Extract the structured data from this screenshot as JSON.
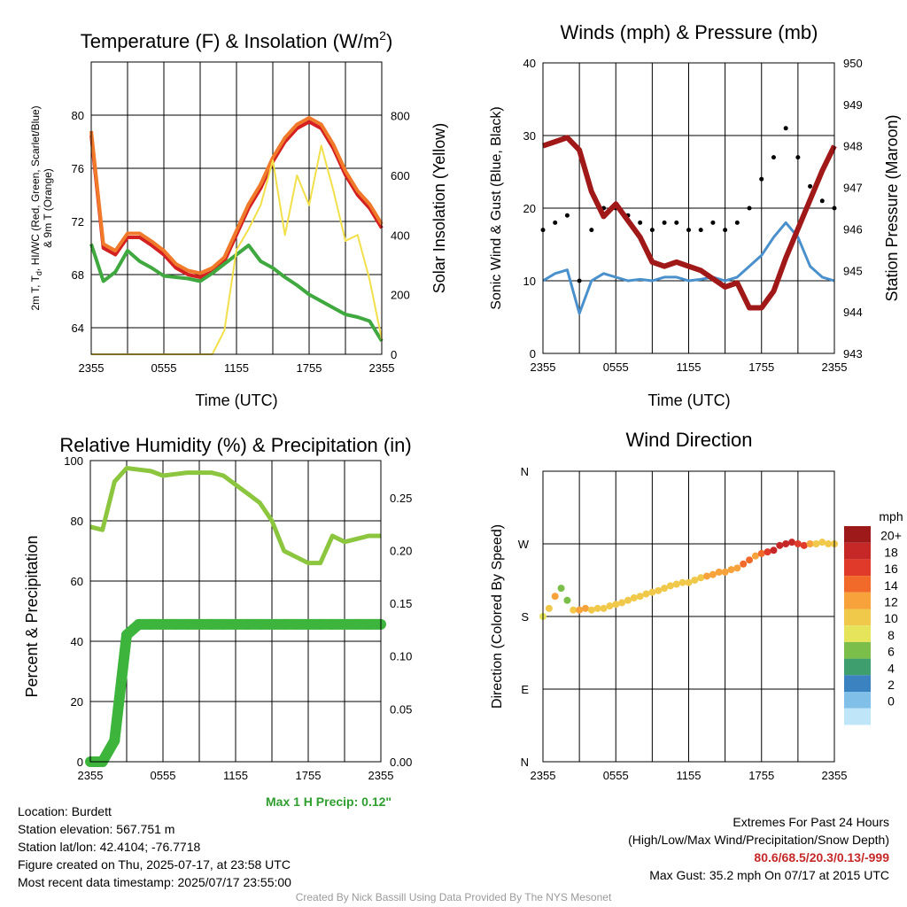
{
  "chart_data": [
    {
      "id": "temperature",
      "type": "line",
      "title": "Temperature (F) & Insolation (W/m²)",
      "xlabel": "Time (UTC)",
      "ylabel": "2m T, Td, HI/WC (Red, Green, Scarlet/Blue) & 9m T (Orange)",
      "ylabel_line1": "2m T, T",
      "ylabel_sub": "d",
      "ylabel_line1b": ", HI/WC (Red, Green, Scarlet/Blue)",
      "ylabel_line2": "& 9m T (Orange)",
      "y2label": "Solar Insolation (Yellow)",
      "xticks": [
        "2355",
        "0555",
        "1155",
        "1755",
        "2355"
      ],
      "ylim": [
        62,
        84
      ],
      "yticks": [
        64,
        68,
        72,
        76,
        80
      ],
      "y2lim": [
        0,
        980
      ],
      "y2ticks": [
        0,
        200,
        400,
        600,
        800
      ],
      "x_hours": [
        0,
        1,
        2,
        3,
        4,
        5,
        6,
        7,
        8,
        9,
        10,
        11,
        12,
        13,
        14,
        15,
        16,
        17,
        18,
        19,
        20,
        21,
        22,
        23,
        24
      ],
      "series": [
        {
          "name": "2m T",
          "color": "#d42020",
          "values": [
            78.5,
            70,
            69.5,
            70.8,
            70.8,
            70.2,
            69.5,
            68.5,
            68,
            67.8,
            68.2,
            69,
            71,
            73,
            74.5,
            76.5,
            78,
            79,
            79.5,
            79,
            77.5,
            75.5,
            74,
            73,
            71.5
          ]
        },
        {
          "name": "9m T",
          "color": "#f07a2a",
          "values": [
            78.8,
            70.3,
            69.8,
            71.1,
            71.1,
            70.5,
            69.8,
            68.8,
            68.3,
            68.1,
            68.5,
            69.3,
            71.3,
            73.3,
            74.8,
            76.8,
            78.3,
            79.3,
            79.8,
            79.3,
            77.8,
            75.8,
            74.3,
            73.3,
            71.8
          ]
        },
        {
          "name": "Td",
          "color": "#3fa83f",
          "values": [
            70.3,
            67.5,
            68.2,
            69.8,
            69,
            68.5,
            67.9,
            67.8,
            67.7,
            67.5,
            68.1,
            68.8,
            69.5,
            70.2,
            69,
            68.5,
            67.8,
            67.2,
            66.5,
            66,
            65.5,
            65,
            64.8,
            64.5,
            63
          ]
        },
        {
          "name": "Solar Insolation",
          "color": "#f2e04a",
          "axis": "y2",
          "values": [
            0,
            0,
            0,
            0,
            0,
            0,
            0,
            0,
            0,
            0,
            0,
            80,
            350,
            420,
            500,
            650,
            400,
            600,
            500,
            700,
            550,
            380,
            400,
            250,
            50
          ]
        }
      ]
    },
    {
      "id": "winds",
      "type": "scatter",
      "title": "Winds (mph) & Pressure (mb)",
      "xlabel": "Time (UTC)",
      "ylabel": "Sonic Wind & Gust (Blue, Black)",
      "y2label": "Station Pressure (Maroon)",
      "xticks": [
        "2355",
        "0555",
        "1155",
        "1755",
        "2355"
      ],
      "ylim": [
        0,
        40
      ],
      "yticks": [
        0,
        10,
        20,
        30,
        40
      ],
      "y2lim": [
        943,
        950
      ],
      "y2ticks": [
        943,
        944,
        945,
        946,
        947,
        948,
        949,
        950
      ],
      "x_hours": [
        0,
        1,
        2,
        3,
        4,
        5,
        6,
        7,
        8,
        9,
        10,
        11,
        12,
        13,
        14,
        15,
        16,
        17,
        18,
        19,
        20,
        21,
        22,
        23,
        24
      ],
      "series": [
        {
          "name": "Sonic Wind",
          "color": "#4a90cc",
          "values": [
            10,
            11,
            11.5,
            5.5,
            10,
            11,
            10.5,
            10,
            10.2,
            10,
            10.5,
            10.5,
            10,
            10.2,
            10.5,
            10,
            10.5,
            12,
            13.5,
            16,
            18,
            16,
            12,
            10.5,
            10
          ]
        },
        {
          "name": "Gust",
          "color": "#000000",
          "values": [
            17,
            18,
            19,
            10,
            17,
            20,
            20,
            19,
            18,
            17,
            18,
            18,
            17,
            17,
            18,
            17,
            18,
            20,
            24,
            27,
            31,
            27,
            23,
            21,
            20
          ]
        },
        {
          "name": "Station Pressure",
          "color": "#a01818",
          "axis": "y2",
          "values": [
            948,
            948.1,
            948.2,
            947.9,
            946.9,
            946.3,
            946.6,
            946.2,
            945.8,
            945.2,
            945.1,
            945.2,
            945.1,
            945,
            944.8,
            944.6,
            944.7,
            944.1,
            944.1,
            944.5,
            945.3,
            946,
            946.7,
            947.4,
            948
          ]
        }
      ]
    },
    {
      "id": "humidity",
      "type": "line",
      "title": "Relative Humidity (%) & Precipitation (in)",
      "ylabel": "Percent & Precipitation",
      "xticks": [
        "2355",
        "0555",
        "1155",
        "1755",
        "2355"
      ],
      "ylim": [
        0,
        100
      ],
      "yticks": [
        0,
        20,
        40,
        60,
        80,
        100
      ],
      "y2lim": [
        0,
        0.285
      ],
      "y2ticks": [
        "0.00",
        "0.05",
        "0.10",
        "0.15",
        "0.20",
        "0.25"
      ],
      "x_hours": [
        0,
        1,
        2,
        3,
        4,
        5,
        6,
        7,
        8,
        9,
        10,
        11,
        12,
        13,
        14,
        15,
        16,
        17,
        18,
        19,
        20,
        21,
        22,
        23,
        24
      ],
      "series": [
        {
          "name": "Relative Humidity",
          "color": "#8cc63f",
          "values": [
            78,
            77,
            93,
            97.5,
            97,
            96.5,
            95,
            95.5,
            96,
            96,
            96,
            95,
            92,
            89,
            86,
            80,
            70,
            68,
            66,
            66,
            75,
            73,
            74,
            75,
            75
          ]
        },
        {
          "name": "Precipitation",
          "color": "#3db53d",
          "values": [
            0,
            0,
            0.02,
            0.12,
            0.13,
            0.13,
            0.13,
            0.13,
            0.13,
            0.13,
            0.13,
            0.13,
            0.13,
            0.13,
            0.13,
            0.13,
            0.13,
            0.13,
            0.13,
            0.13,
            0.13,
            0.13,
            0.13,
            0.13,
            0.13
          ]
        }
      ]
    },
    {
      "id": "direction",
      "type": "scatter",
      "title": "Wind Direction",
      "ylabel": "Direction (Colored By Speed)",
      "xticks": [
        "2355",
        "0555",
        "1155",
        "1755",
        "2355"
      ],
      "yticks": [
        "N",
        "E",
        "S",
        "W",
        "N"
      ],
      "ylim": [
        0,
        360
      ],
      "x_hours": [
        0,
        0.5,
        1,
        1.5,
        2,
        2.5,
        3,
        3.5,
        4,
        4.5,
        5,
        5.5,
        6,
        6.5,
        7,
        7.5,
        8,
        8.5,
        9,
        9.5,
        10,
        10.5,
        11,
        11.5,
        12,
        12.5,
        13,
        13.5,
        14,
        14.5,
        15,
        15.5,
        16,
        16.5,
        17,
        17.5,
        18,
        18.5,
        19,
        19.5,
        20,
        20.5,
        21,
        21.5,
        22,
        22.5,
        23,
        23.5,
        24
      ],
      "degrees": [
        180,
        190,
        205,
        215,
        200,
        188,
        188,
        190,
        188,
        190,
        190,
        193,
        195,
        197,
        200,
        203,
        205,
        208,
        210,
        212,
        215,
        218,
        220,
        222,
        222,
        225,
        228,
        230,
        232,
        235,
        235,
        238,
        240,
        245,
        250,
        255,
        258,
        260,
        262,
        268,
        270,
        272,
        270,
        268,
        270,
        270,
        272,
        270,
        270
      ],
      "speeds": [
        8,
        10,
        12,
        7,
        6,
        11,
        12,
        12,
        11,
        11,
        10,
        11,
        11,
        10,
        10,
        10,
        11,
        10,
        10,
        10,
        10,
        10,
        11,
        10,
        10,
        10,
        11,
        12,
        12,
        13,
        13,
        12,
        13,
        14,
        14,
        13,
        15,
        16,
        18,
        18,
        19,
        18,
        17,
        16,
        12,
        11,
        10,
        11,
        10
      ],
      "legend_title": "mph",
      "legend_labels": [
        "20+",
        "18",
        "16",
        "14",
        "12",
        "10",
        "8",
        "6",
        "4",
        "2",
        "0"
      ],
      "legend_colors": [
        "#9e1a1a",
        "#c62828",
        "#e03a2a",
        "#f26a2a",
        "#f7a23a",
        "#f0c84a",
        "#e6e45a",
        "#7bbf4a",
        "#3e9e6e",
        "#3a82c0",
        "#7fbfe8",
        "#bfe6f8"
      ]
    }
  ],
  "precip_note": "Max 1 H Precip: 0.12\"",
  "info": {
    "location": "Location: Burdett",
    "elevation": "Station elevation: 567.751 m",
    "latlon": "Station lat/lon: 42.4104; -76.7718",
    "created": "Figure created on Thu, 2025-07-17, at 23:58 UTC",
    "recent": "Most recent data timestamp: 2025/07/17 23:55:00"
  },
  "extremes": {
    "title": "Extremes For Past 24 Hours",
    "subtitle": "(High/Low/Max Wind/Precipitation/Snow Depth)",
    "values": "80.6/68.5/20.3/0.13/-999",
    "gust": "Max Gust: 35.2 mph On 07/17 at 2015 UTC"
  },
  "credit": "Created By Nick Bassill Using Data Provided By The NYS Mesonet"
}
